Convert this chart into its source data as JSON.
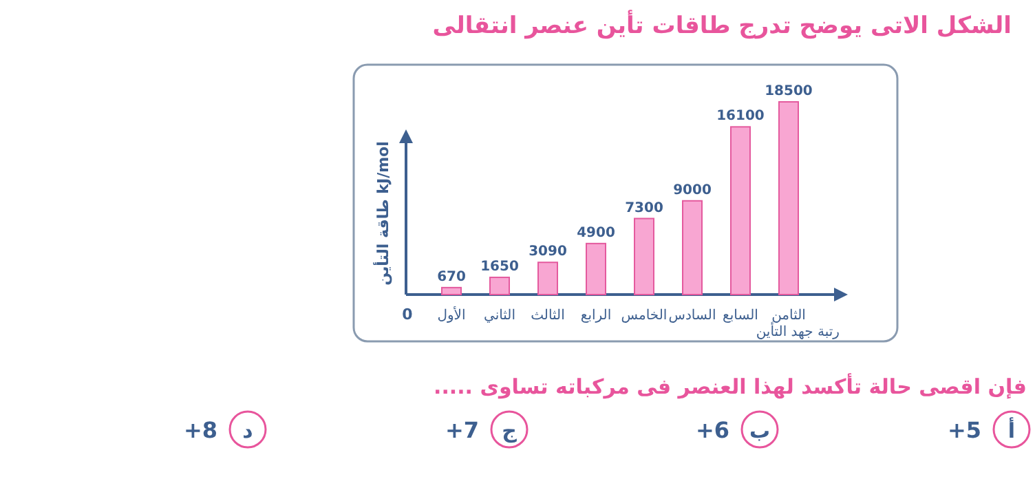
{
  "chart_data": {
    "type": "bar",
    "title": "الشكل الاتى يوضح تدرج طاقات تأين عنصر انتقالى",
    "xlabel": "رتبة جهد التأين",
    "ylabel": "طاقة التأين kJ/mol",
    "categories": [
      "الأول",
      "الثاني",
      "الثالث",
      "الرابع",
      "الخامس",
      "السادس",
      "السابع",
      "الثامن"
    ],
    "values": [
      670,
      1650,
      3090,
      4900,
      7300,
      9000,
      16100,
      18500
    ],
    "color": "#f8a6d2",
    "data_labels": true,
    "annotations": [
      "0",
      "فإن اقصى حالة تأكسد لهذا العنصر فى مركباته تساوى .....",
      "أ",
      "+5",
      "ب",
      "+6",
      "ج",
      "+7",
      "د",
      "+8"
    ]
  }
}
